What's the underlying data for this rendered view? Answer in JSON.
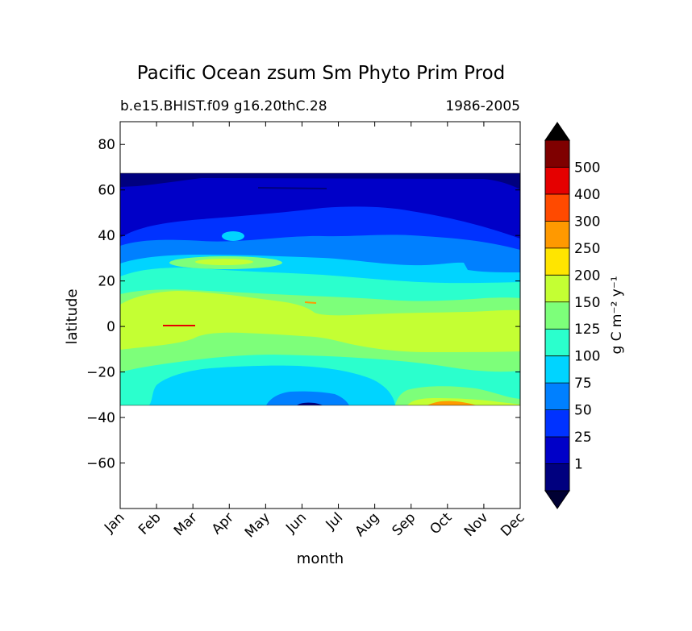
{
  "chart_data": {
    "type": "heatmap",
    "subtype": "filled-contour",
    "title": "Pacific Ocean zsum Sm Phyto Prim Prod",
    "subtitle_left": "b.e15.BHIST.f09 g16.20thC.28",
    "subtitle_right": "1986-2005",
    "xlabel": "month",
    "ylabel": "latitude",
    "x_tick_labels": [
      "Jan",
      "Feb",
      "Mar",
      "Apr",
      "May",
      "Jun",
      "Jul",
      "Aug",
      "Sep",
      "Oct",
      "Nov",
      "Dec"
    ],
    "xlim": [
      0,
      11
    ],
    "ylim": [
      -80,
      90
    ],
    "y_ticks": [
      80,
      60,
      40,
      20,
      0,
      -20,
      -40,
      -60
    ],
    "y_tick_labels": [
      "80",
      "60",
      "40",
      "20",
      "0",
      "−20",
      "−40",
      "−60"
    ],
    "data_lat_range": [
      -34,
      67
    ],
    "colorbar": {
      "label": "g C m⁻² y⁻¹",
      "tick_labels": [
        "1",
        "25",
        "50",
        "75",
        "100",
        "125",
        "150",
        "200",
        "250",
        "300",
        "400",
        "500"
      ],
      "colors": [
        "#00007f",
        "#0000c8",
        "#0032ff",
        "#0080ff",
        "#00d4ff",
        "#2bffcd",
        "#7dff7a",
        "#c4ff33",
        "#ffe500",
        "#ff9900",
        "#ff4a00",
        "#e50000",
        "#7f0000"
      ],
      "under_color": "#000033",
      "over_color": "#000000"
    },
    "contour_bands": [
      {
        "level": "0-1",
        "color": "#00007f"
      },
      {
        "level": "1-25",
        "color": "#0000c8"
      },
      {
        "level": "25-50",
        "color": "#0032ff"
      },
      {
        "level": "50-75",
        "color": "#0080ff"
      },
      {
        "level": "75-100",
        "color": "#00d4ff"
      },
      {
        "level": "100-125",
        "color": "#2bffcd"
      },
      {
        "level": "125-150",
        "color": "#7dff7a"
      },
      {
        "level": "150-200",
        "color": "#c4ff33"
      },
      {
        "level": "250-300",
        "color": "#ff9900"
      },
      {
        "level": "400-500",
        "color": "#e50000"
      }
    ]
  }
}
